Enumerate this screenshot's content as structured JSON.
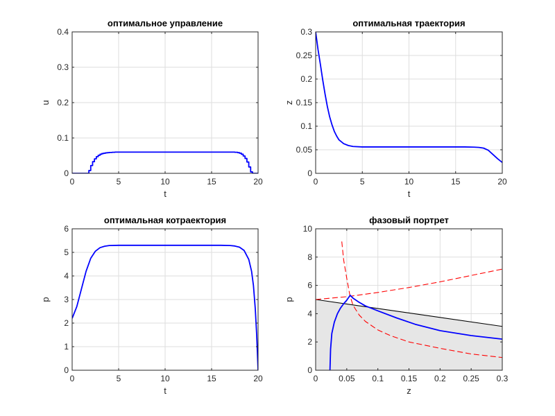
{
  "chart_data": [
    {
      "type": "line",
      "title": "оптимальное управление",
      "xlabel": "t",
      "ylabel": "u",
      "xlim": [
        0,
        20
      ],
      "ylim": [
        0,
        0.4
      ],
      "xticks": [
        "0",
        "5",
        "10",
        "15",
        "20"
      ],
      "yticks": [
        "0",
        "0.1",
        "0.2",
        "0.3",
        "0.4"
      ],
      "grid": true,
      "series": [
        {
          "color": "#0000ff",
          "step": true,
          "x": [
            0,
            1.6,
            1.8,
            2.0,
            2.2,
            2.4,
            2.6,
            2.8,
            3.0,
            3.2,
            3.4,
            3.6,
            3.8,
            4.0,
            4.3,
            4.6,
            5.0,
            6.0,
            10,
            15,
            17.0,
            17.5,
            17.8,
            18.0,
            18.2,
            18.4,
            18.6,
            18.8,
            19.0,
            19.2,
            19.4,
            20
          ],
          "y": [
            0,
            0.0,
            0.008,
            0.022,
            0.033,
            0.041,
            0.047,
            0.051,
            0.054,
            0.056,
            0.057,
            0.058,
            0.0585,
            0.059,
            0.0595,
            0.06,
            0.06,
            0.06,
            0.06,
            0.06,
            0.06,
            0.0595,
            0.0585,
            0.057,
            0.054,
            0.049,
            0.042,
            0.032,
            0.018,
            0.004,
            0.0,
            0.0
          ]
        }
      ]
    },
    {
      "type": "line",
      "title": "оптимальная траектория",
      "xlabel": "t",
      "ylabel": "z",
      "xlim": [
        0,
        20
      ],
      "ylim": [
        0,
        0.3
      ],
      "xticks": [
        "0",
        "5",
        "10",
        "15",
        "20"
      ],
      "yticks": [
        "0",
        "0.05",
        "0.1",
        "0.15",
        "0.2",
        "0.25",
        "0.3"
      ],
      "grid": true,
      "series": [
        {
          "color": "#0000ff",
          "x": [
            0,
            0.25,
            0.5,
            0.75,
            1.0,
            1.25,
            1.5,
            1.75,
            2.0,
            2.25,
            2.5,
            3.0,
            3.5,
            4.0,
            5.0,
            6.0,
            8,
            10,
            12,
            14,
            16,
            17,
            17.5,
            18,
            18.5,
            19,
            19.5,
            20
          ],
          "y": [
            0.3,
            0.263,
            0.232,
            0.199,
            0.169,
            0.142,
            0.12,
            0.103,
            0.089,
            0.079,
            0.071,
            0.063,
            0.059,
            0.057,
            0.056,
            0.056,
            0.056,
            0.056,
            0.056,
            0.056,
            0.056,
            0.0555,
            0.055,
            0.0535,
            0.049,
            0.04,
            0.031,
            0.023
          ]
        }
      ]
    },
    {
      "type": "line",
      "title": "оптимальная котраектория",
      "xlabel": "t",
      "ylabel": "p",
      "xlim": [
        0,
        20
      ],
      "ylim": [
        0,
        6
      ],
      "xticks": [
        "0",
        "5",
        "10",
        "15",
        "20"
      ],
      "yticks": [
        "0",
        "1",
        "2",
        "3",
        "4",
        "5",
        "6"
      ],
      "grid": true,
      "series": [
        {
          "color": "#0000ff",
          "x": [
            0,
            0.5,
            1.0,
            1.5,
            2.0,
            2.5,
            3.0,
            3.5,
            4.0,
            5.0,
            6.0,
            8,
            10,
            12,
            14,
            16,
            17.0,
            17.5,
            18.0,
            18.5,
            19.0,
            19.3,
            19.5,
            19.7,
            19.85,
            20
          ],
          "y": [
            2.2,
            2.7,
            3.45,
            4.2,
            4.75,
            5.05,
            5.2,
            5.26,
            5.29,
            5.3,
            5.3,
            5.3,
            5.3,
            5.3,
            5.3,
            5.3,
            5.29,
            5.27,
            5.22,
            5.08,
            4.7,
            4.2,
            3.6,
            2.6,
            1.5,
            0.0
          ]
        }
      ]
    },
    {
      "type": "line",
      "title": "фазовый портрет",
      "xlabel": "z",
      "ylabel": "p",
      "xlim": [
        0,
        0.3
      ],
      "ylim": [
        0,
        10
      ],
      "xticks": [
        "0",
        "0.05",
        "0.1",
        "0.15",
        "0.2",
        "0.25",
        "0.3"
      ],
      "yticks": [
        "0",
        "2",
        "4",
        "6",
        "8",
        "10"
      ],
      "grid": true,
      "shaded_region": {
        "color": "#e6e6e6",
        "boundary": "black line from (0, 5.0) to (0.3, 3.1)"
      },
      "series": [
        {
          "color": "#000000",
          "style": "solid",
          "x": [
            0,
            0.3
          ],
          "y": [
            5.0,
            3.1
          ]
        },
        {
          "color": "#ff0000",
          "style": "dashed",
          "x": [
            0,
            0.05,
            0.1,
            0.15,
            0.2,
            0.25,
            0.3
          ],
          "y": [
            5.0,
            5.2,
            5.5,
            5.85,
            6.25,
            6.7,
            7.15
          ]
        },
        {
          "color": "#ff0000",
          "style": "dashed",
          "x": [
            0.042,
            0.045,
            0.05,
            0.055,
            0.06,
            0.07,
            0.08,
            0.1,
            0.12,
            0.15,
            0.2,
            0.25,
            0.3
          ],
          "y": [
            9.1,
            7.8,
            6.5,
            5.3,
            4.6,
            3.9,
            3.45,
            2.85,
            2.45,
            2.0,
            1.55,
            1.15,
            0.9
          ]
        },
        {
          "color": "#0000ff",
          "style": "solid",
          "x": [
            0.023,
            0.024,
            0.026,
            0.03,
            0.035,
            0.04,
            0.045,
            0.05,
            0.0555,
            0.06,
            0.07,
            0.08,
            0.1,
            0.13,
            0.16,
            0.2,
            0.25,
            0.3
          ],
          "y": [
            0,
            1.5,
            2.6,
            3.4,
            4.0,
            4.4,
            4.7,
            4.95,
            5.3,
            5.1,
            4.8,
            4.55,
            4.2,
            3.7,
            3.25,
            2.8,
            2.45,
            2.2
          ]
        }
      ]
    }
  ]
}
